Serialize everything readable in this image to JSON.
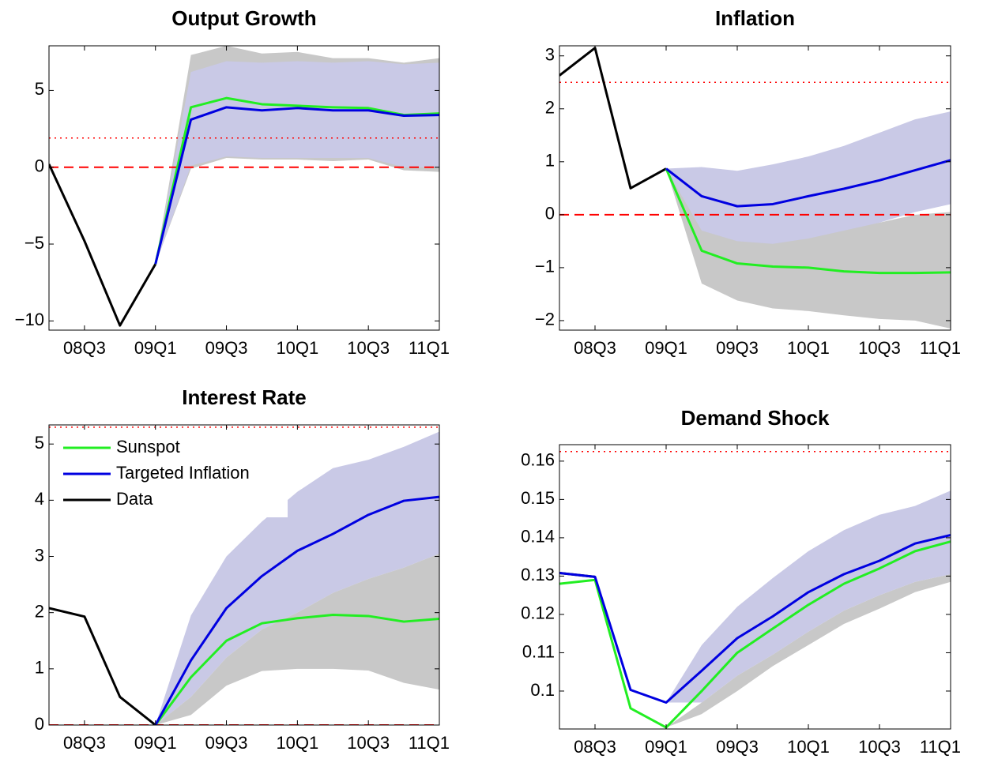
{
  "chart_data": [
    {
      "type": "line",
      "title": "Output Growth",
      "categories": [
        null,
        "08Q3",
        null,
        "09Q1",
        null,
        "09Q3",
        null,
        "10Q1",
        null,
        "10Q3",
        null,
        "11Q1"
      ],
      "ylim": [
        -10.6,
        7.9
      ],
      "yticks": [
        {
          "value": -10,
          "label": "−10"
        },
        {
          "value": -5,
          "label": "−5"
        },
        0,
        5
      ],
      "bands": [
        {
          "color": "#c8c8c8",
          "upper": [
            null,
            null,
            null,
            -6.3,
            7.3,
            7.9,
            7.4,
            7.5,
            7.1,
            7.1,
            6.8,
            7.1
          ],
          "lower": [
            null,
            null,
            null,
            -6.3,
            -0.1,
            0.6,
            0.5,
            0.5,
            0.4,
            0.5,
            -0.2,
            -0.3
          ]
        },
        {
          "color": "#c9c9e6",
          "upper": [
            null,
            null,
            null,
            -6.3,
            6.2,
            6.9,
            6.8,
            6.9,
            6.8,
            6.9,
            6.7,
            6.8
          ],
          "lower": [
            null,
            null,
            null,
            -6.3,
            0.1,
            0.7,
            0.6,
            0.6,
            0.6,
            0.6,
            0.0,
            0.0
          ]
        }
      ],
      "hlines": [
        {
          "value": 0,
          "style": "dashed",
          "color": "#ff0000"
        },
        {
          "value": 1.9,
          "style": "dotted",
          "color": "#ff0000"
        }
      ],
      "series": [
        {
          "color": "#000000",
          "values": [
            0.2,
            -4.8,
            -10.3,
            -6.3,
            null,
            null,
            null,
            null,
            null,
            null,
            null,
            null
          ]
        },
        {
          "color": "#22ee22",
          "values": [
            null,
            null,
            null,
            -6.3,
            3.9,
            4.5,
            4.1,
            4.0,
            3.9,
            3.85,
            3.4,
            3.5
          ]
        },
        {
          "color": "#0000e0",
          "values": [
            null,
            null,
            null,
            -6.3,
            3.1,
            3.9,
            3.7,
            3.85,
            3.7,
            3.7,
            3.35,
            3.4
          ]
        }
      ]
    },
    {
      "type": "line",
      "title": "Inflation",
      "categories": [
        null,
        "08Q3",
        null,
        "09Q1",
        null,
        "09Q3",
        null,
        "10Q1",
        null,
        "10Q3",
        null,
        "11Q1"
      ],
      "ylim": [
        -2.18,
        3.19
      ],
      "yticks": [
        {
          "value": -2,
          "label": "−2"
        },
        {
          "value": -1,
          "label": "−1"
        },
        0,
        1,
        2,
        3
      ],
      "bands": [
        {
          "color": "#c8c8c8",
          "upper": [
            null,
            null,
            null,
            0.87,
            -0.1,
            -0.35,
            -0.4,
            -0.35,
            -0.25,
            -0.15,
            0.0,
            0.05
          ],
          "lower": [
            null,
            null,
            null,
            0.87,
            -1.3,
            -1.62,
            -1.77,
            -1.82,
            -1.9,
            -1.97,
            -2.0,
            -2.15
          ]
        },
        {
          "color": "#c9c9e6",
          "upper": [
            null,
            null,
            null,
            0.87,
            0.9,
            0.83,
            0.95,
            1.1,
            1.3,
            1.55,
            1.8,
            1.95
          ],
          "lower": [
            null,
            null,
            null,
            0.87,
            -0.3,
            -0.5,
            -0.55,
            -0.45,
            -0.3,
            -0.15,
            0.05,
            0.2
          ]
        }
      ],
      "hlines": [
        {
          "value": 0,
          "style": "dashed",
          "color": "#ff0000"
        },
        {
          "value": 2.5,
          "style": "dotted",
          "color": "#ff0000"
        }
      ],
      "series": [
        {
          "color": "#000000",
          "values": [
            2.63,
            3.15,
            0.5,
            0.87,
            null,
            null,
            null,
            null,
            null,
            null,
            null,
            null
          ]
        },
        {
          "color": "#22ee22",
          "values": [
            null,
            null,
            null,
            0.87,
            -0.68,
            -0.92,
            -0.98,
            -1.0,
            -1.07,
            -1.1,
            -1.1,
            -1.09
          ]
        },
        {
          "color": "#0000e0",
          "values": [
            null,
            null,
            null,
            0.87,
            0.35,
            0.16,
            0.2,
            0.35,
            0.49,
            0.65,
            0.84,
            1.03
          ]
        }
      ]
    },
    {
      "type": "line",
      "title": "Interest Rate",
      "categories": [
        null,
        "08Q3",
        null,
        "09Q1",
        null,
        "09Q3",
        null,
        "10Q1",
        null,
        "10Q3",
        null,
        "11Q1"
      ],
      "ylim": [
        0,
        5.34
      ],
      "yticks": [
        0,
        1,
        2,
        3,
        4,
        5
      ],
      "legend": "upper left",
      "bands": [
        {
          "color": "#c9c9e6",
          "upper": [
            null,
            null,
            null,
            0,
            1.95,
            3.0,
            3.62,
            4.15,
            4.57,
            4.72,
            4.95,
            5.22
          ],
          "lower": [
            null,
            null,
            null,
            0,
            0.5,
            1.2,
            1.7,
            2.0,
            2.35,
            2.6,
            2.8,
            3.05
          ]
        },
        {
          "color": "#c8c8c8",
          "upper": [
            null,
            null,
            null,
            0,
            0.5,
            1.2,
            1.7,
            2.0,
            2.35,
            2.6,
            2.8,
            3.05
          ],
          "lower": [
            null,
            null,
            null,
            0,
            0.18,
            0.7,
            0.96,
            1.0,
            1.0,
            0.97,
            0.75,
            0.63
          ]
        }
      ],
      "hlines": [
        {
          "value": 0,
          "style": "dashed",
          "color": "#ff0000"
        },
        {
          "value": 5.3,
          "style": "dotted",
          "color": "#ff0000"
        }
      ],
      "series": [
        {
          "name": "Data",
          "color": "#000000",
          "values": [
            2.08,
            1.93,
            0.5,
            0.0,
            null,
            null,
            null,
            null,
            null,
            null,
            null,
            null
          ]
        },
        {
          "name": "Sunspot",
          "color": "#22ee22",
          "values": [
            null,
            null,
            null,
            0,
            0.85,
            1.5,
            1.81,
            1.9,
            1.96,
            1.94,
            1.84,
            1.89
          ]
        },
        {
          "name": "Targeted Inflation",
          "color": "#0000e0",
          "values": [
            null,
            null,
            null,
            0,
            1.15,
            2.08,
            2.65,
            3.1,
            3.4,
            3.74,
            3.99,
            4.06
          ]
        }
      ],
      "legend_order": [
        1,
        2,
        0
      ]
    },
    {
      "type": "line",
      "title": "Demand Shock",
      "categories": [
        null,
        "08Q3",
        null,
        "09Q1",
        null,
        "09Q3",
        null,
        "10Q1",
        null,
        "10Q3",
        null,
        "11Q1"
      ],
      "ylim": [
        0.0901,
        0.1643
      ],
      "yticks": [
        0.1,
        0.11,
        0.12,
        0.13,
        0.14,
        0.15,
        0.16
      ],
      "bands": [
        {
          "color": "#c8c8c8",
          "upper": [
            null,
            null,
            null,
            0.0905,
            0.097,
            0.104,
            0.1095,
            0.1155,
            0.121,
            0.125,
            0.1285,
            0.1305
          ],
          "lower": [
            null,
            null,
            null,
            0.0905,
            0.094,
            0.1,
            0.1065,
            0.112,
            0.1175,
            0.1215,
            0.1258,
            0.1285
          ]
        },
        {
          "color": "#c9c9e6",
          "upper": [
            null,
            null,
            null,
            0.097,
            0.112,
            0.122,
            0.1295,
            0.1365,
            0.142,
            0.146,
            0.1483,
            0.1523
          ],
          "lower": [
            null,
            null,
            null,
            0.097,
            0.097,
            0.104,
            0.1095,
            0.1155,
            0.121,
            0.125,
            0.1285,
            0.1305
          ]
        }
      ],
      "hlines": [
        {
          "value": 0.1625,
          "style": "dotted",
          "color": "#ff0000"
        }
      ],
      "series": [
        {
          "color": "#000000",
          "values": [
            0.1308,
            0.1298,
            null,
            null,
            null,
            null,
            null,
            null,
            null,
            null,
            null,
            null
          ]
        },
        {
          "color": "#22ee22",
          "values": [
            0.128,
            0.129,
            0.0955,
            0.0905,
            0.1,
            0.11,
            0.1163,
            0.1225,
            0.128,
            0.132,
            0.1365,
            0.139
          ]
        },
        {
          "color": "#0000e0",
          "values": [
            0.1308,
            0.1298,
            0.1003,
            0.097,
            0.1053,
            0.1138,
            0.1195,
            0.1258,
            0.1305,
            0.134,
            0.1385,
            0.1407
          ]
        }
      ]
    }
  ]
}
